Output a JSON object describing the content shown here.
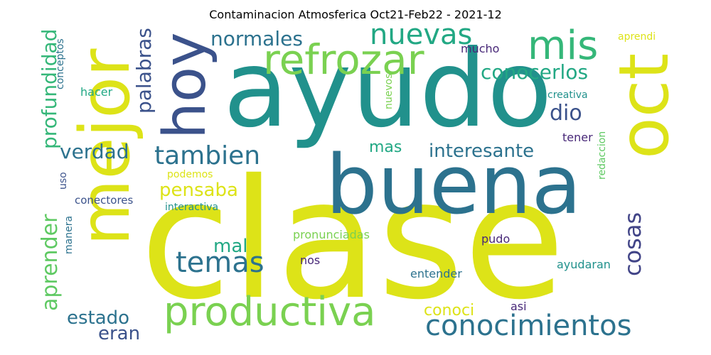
{
  "title": "Contaminacion Atmosferica Oct21-Feb22 - 2021-12",
  "words": [
    {
      "text": "clase",
      "color": "#dde318"
    },
    {
      "text": "ayudo",
      "color": "#21918c"
    },
    {
      "text": "buena",
      "color": "#2c728e"
    },
    {
      "text": "mejor",
      "color": "#dde318"
    },
    {
      "text": "oct",
      "color": "#dde318"
    },
    {
      "text": "hoy",
      "color": "#3b528b"
    },
    {
      "text": "refrozar",
      "color": "#7ad151"
    },
    {
      "text": "productiva",
      "color": "#7ad151"
    },
    {
      "text": "conocimientos",
      "color": "#2c728e"
    },
    {
      "text": "mis",
      "color": "#35b779"
    },
    {
      "text": "nuevas",
      "color": "#22a884"
    },
    {
      "text": "tambien",
      "color": "#2c728e"
    },
    {
      "text": "aprender",
      "color": "#5ec962"
    },
    {
      "text": "profundidad",
      "color": "#35b779"
    },
    {
      "text": "temas",
      "color": "#2c728e"
    },
    {
      "text": "cosas",
      "color": "#414487"
    },
    {
      "text": "normales",
      "color": "#2c728e"
    },
    {
      "text": "conocerlos",
      "color": "#22a884"
    },
    {
      "text": "palabras",
      "color": "#3b528b"
    },
    {
      "text": "verdad",
      "color": "#2c728e"
    },
    {
      "text": "interesante",
      "color": "#2c728e"
    },
    {
      "text": "pensaba",
      "color": "#dde318"
    },
    {
      "text": "estado",
      "color": "#2c728e"
    },
    {
      "text": "eran",
      "color": "#3b528b"
    },
    {
      "text": "dio",
      "color": "#3b528b"
    },
    {
      "text": "mas",
      "color": "#22a884"
    },
    {
      "text": "mal",
      "color": "#22a884"
    },
    {
      "text": "conoci",
      "color": "#dde318"
    },
    {
      "text": "conceptos",
      "color": "#2c728e"
    },
    {
      "text": "hacer",
      "color": "#22a884"
    },
    {
      "text": "mucho",
      "color": "#482878"
    },
    {
      "text": "aprendi",
      "color": "#dde318"
    },
    {
      "text": "nuevos",
      "color": "#7ad151"
    },
    {
      "text": "creativa",
      "color": "#21918c"
    },
    {
      "text": "tener",
      "color": "#482878"
    },
    {
      "text": "redaccion",
      "color": "#5ec962"
    },
    {
      "text": "podemos",
      "color": "#dde318"
    },
    {
      "text": "uso",
      "color": "#3b528b"
    },
    {
      "text": "conectores",
      "color": "#3b528b"
    },
    {
      "text": "interactiva",
      "color": "#21918c"
    },
    {
      "text": "manera",
      "color": "#2c728e"
    },
    {
      "text": "pronunciadas",
      "color": "#7ad151"
    },
    {
      "text": "pudo",
      "color": "#482878"
    },
    {
      "text": "nos",
      "color": "#482878"
    },
    {
      "text": "ayudaran",
      "color": "#21918c"
    },
    {
      "text": "entender",
      "color": "#2c728e"
    },
    {
      "text": "asi",
      "color": "#482878"
    }
  ]
}
